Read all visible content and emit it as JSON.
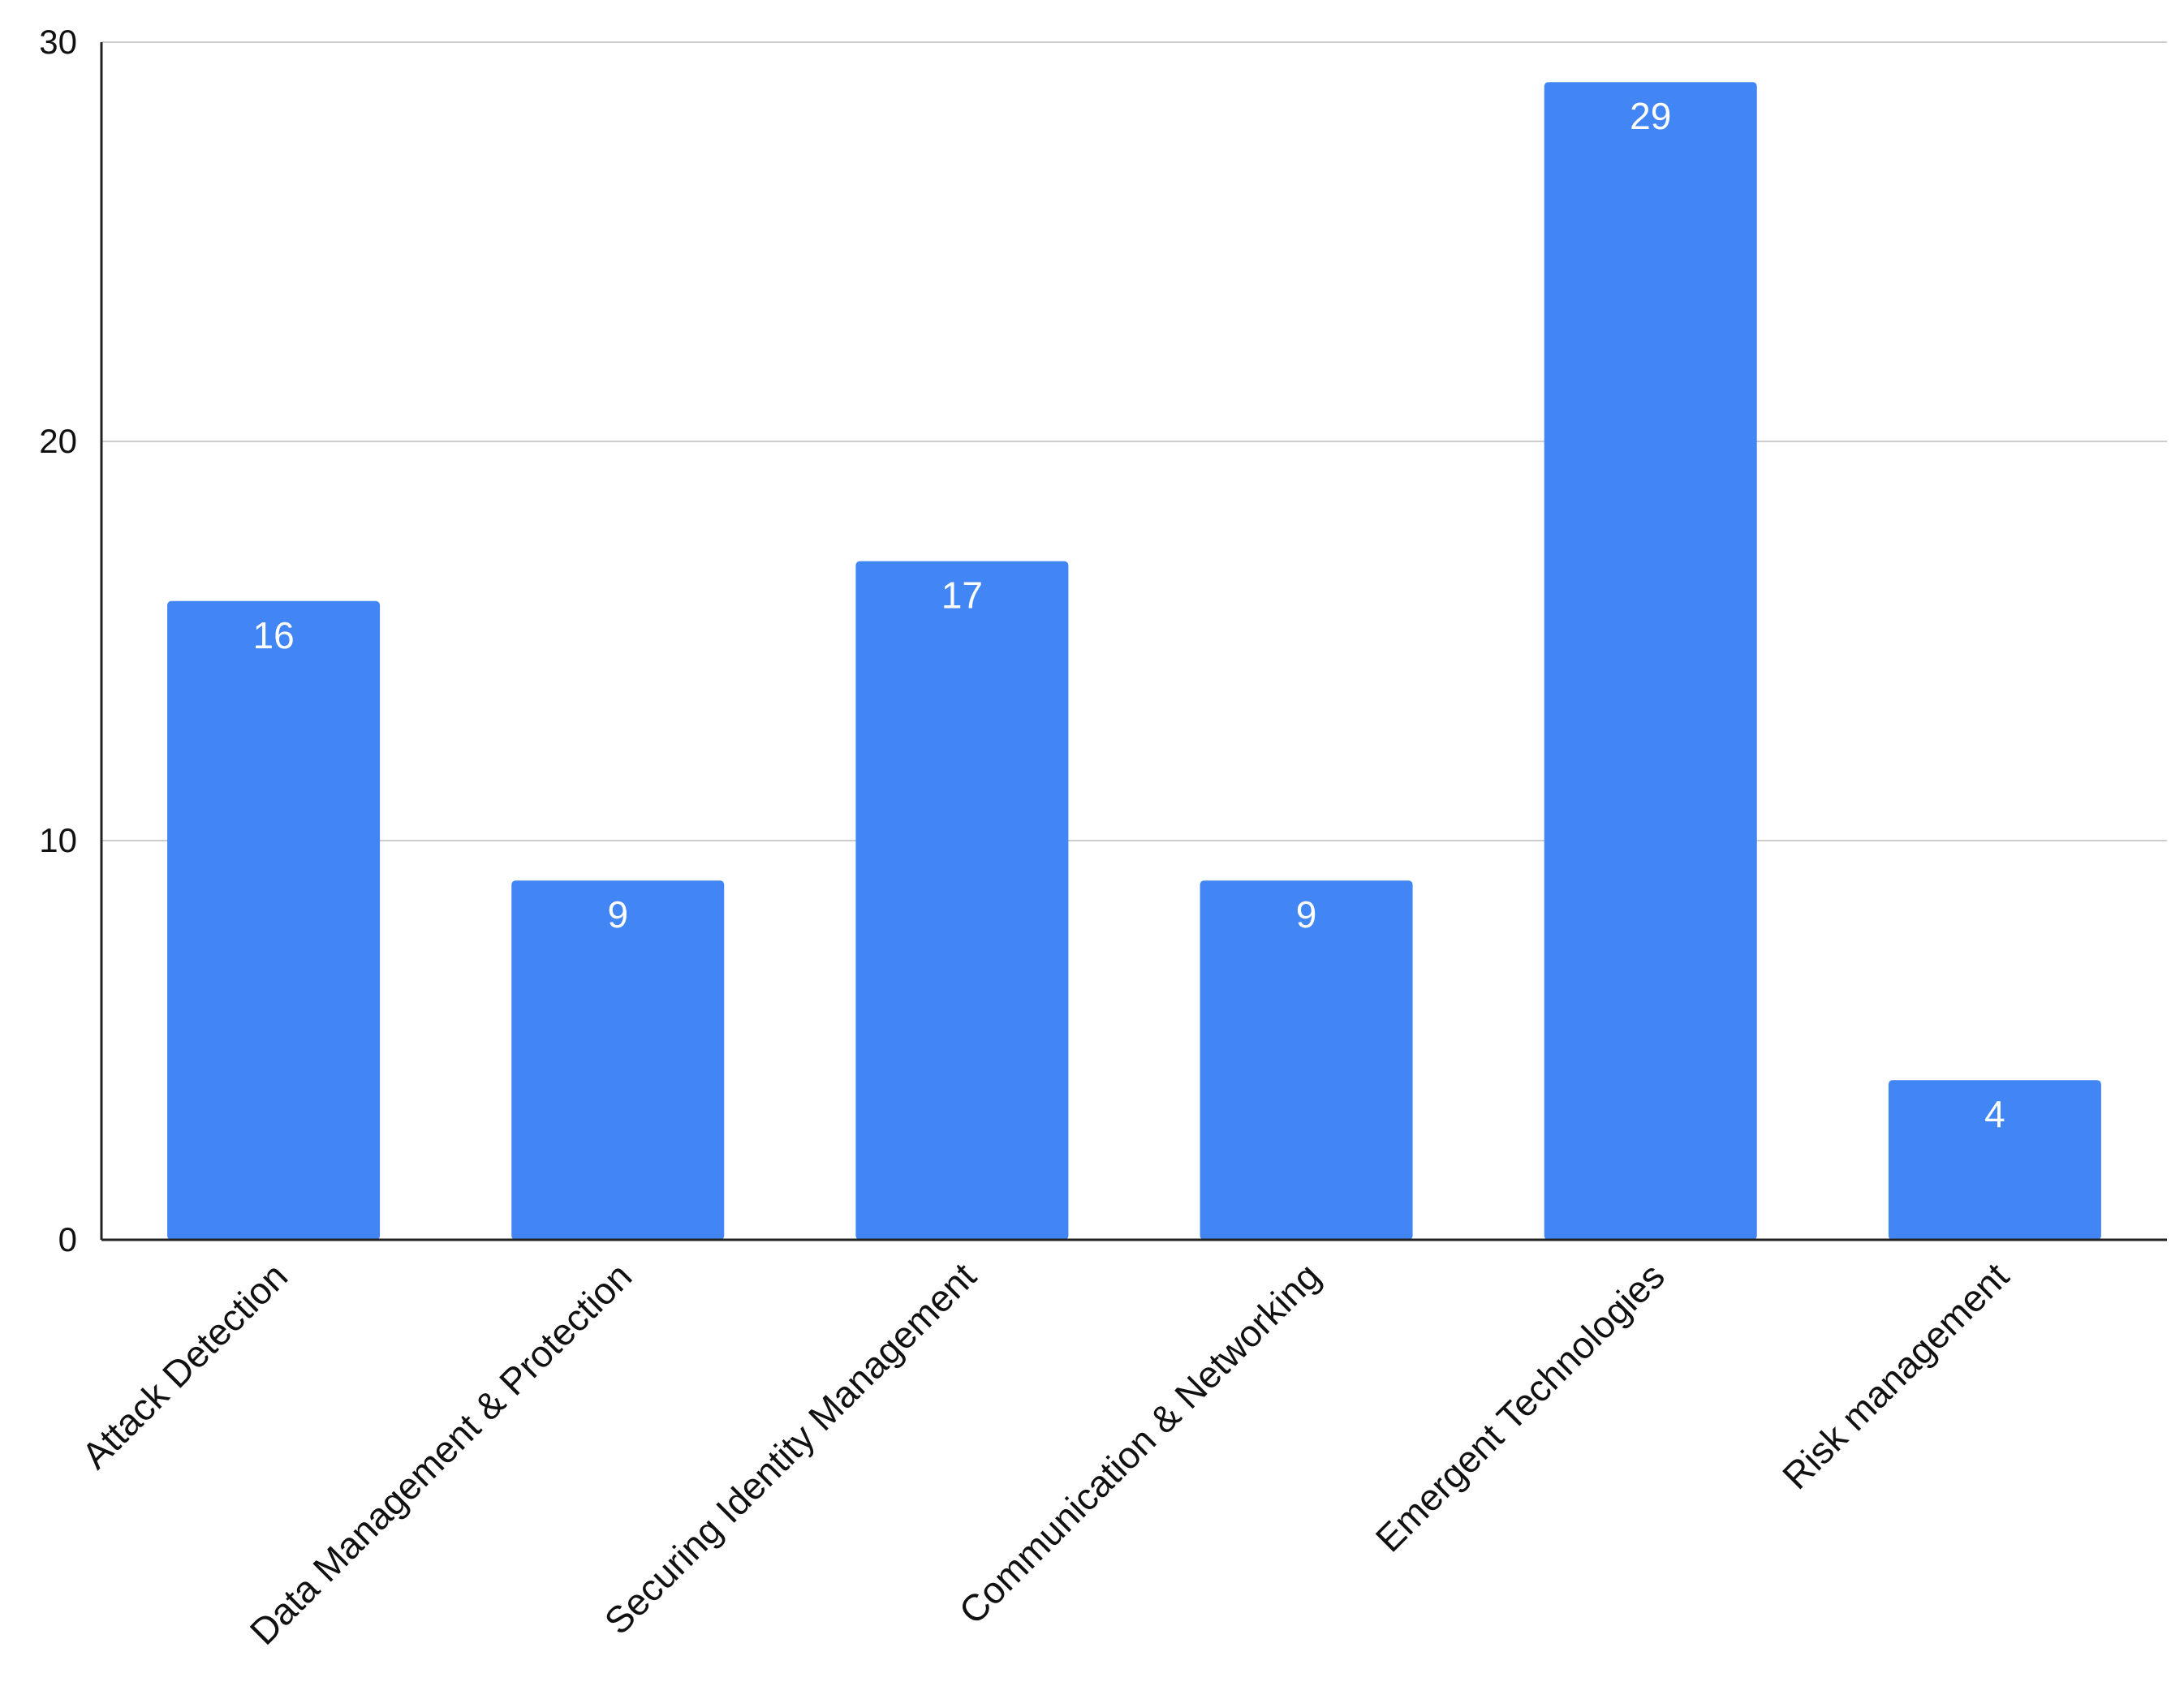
{
  "chart_data": {
    "type": "bar",
    "title": "",
    "xlabel": "",
    "ylabel": "",
    "categories": [
      "Attack Detection",
      "Data Management & Protection",
      "Securing Identity Management",
      "Communication & Networking",
      "Emergent Technologies",
      "Risk management"
    ],
    "values": [
      16,
      9,
      17,
      9,
      29,
      4
    ],
    "data_labels": [
      "16",
      "9",
      "17",
      "9",
      "29",
      "4"
    ],
    "ylim": [
      0,
      30
    ],
    "yticks": [
      0,
      10,
      20,
      30
    ],
    "ytick_labels": [
      "0",
      "10",
      "20",
      "30"
    ],
    "grid": "horizontal",
    "legend": "none",
    "bar_color": "#4285f4",
    "x_tick_rotation_deg": -45
  }
}
